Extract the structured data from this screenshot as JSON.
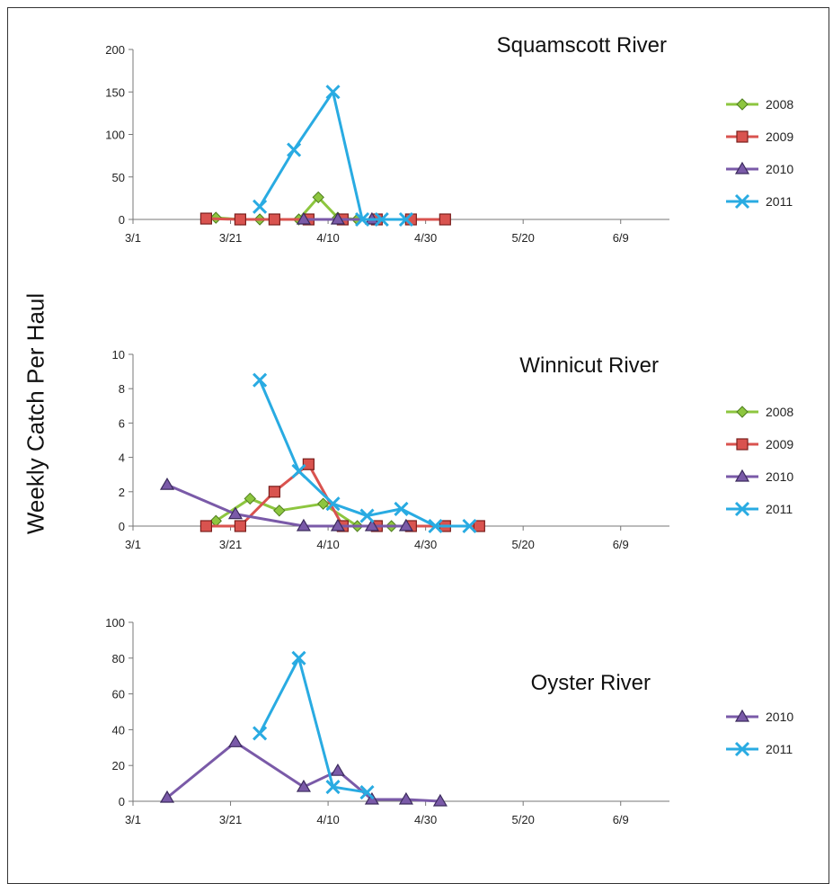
{
  "y_axis_label": "Weekly Catch Per Haul",
  "colors": {
    "2008": "#8dc63f",
    "2009": "#d9534f",
    "2010": "#7a5aa8",
    "2011": "#29abe2"
  },
  "chart_data": [
    {
      "type": "line",
      "title": "Squamscott River",
      "x_ticks": [
        "3/1",
        "3/21",
        "4/10",
        "4/30",
        "5/20",
        "6/9"
      ],
      "x_domain_days": [
        0,
        110
      ],
      "ylim": [
        0,
        200
      ],
      "y_ticks": [
        0,
        50,
        100,
        150,
        200
      ],
      "legend": "right",
      "series": [
        {
          "name": "2008",
          "marker": "diamond",
          "x": [
            "3/18",
            "3/23",
            "3/27",
            "4/4",
            "4/8",
            "4/12",
            "4/16",
            "4/20"
          ],
          "y": [
            2,
            0,
            0,
            0,
            26,
            2,
            0,
            0
          ]
        },
        {
          "name": "2009",
          "marker": "square",
          "x": [
            "3/16",
            "3/23",
            "3/30",
            "4/6",
            "4/13",
            "4/20",
            "4/27",
            "5/4"
          ],
          "y": [
            1,
            0,
            0,
            0,
            0,
            0,
            0,
            0
          ]
        },
        {
          "name": "2010",
          "marker": "triangle",
          "x": [
            "4/5",
            "4/12",
            "4/19"
          ],
          "y": [
            0,
            0,
            0
          ]
        },
        {
          "name": "2011",
          "marker": "x",
          "x": [
            "3/27",
            "4/3",
            "4/11",
            "4/17",
            "4/21",
            "4/26"
          ],
          "y": [
            15,
            82,
            150,
            0,
            0,
            0
          ]
        }
      ]
    },
    {
      "type": "line",
      "title": "Winnicut River",
      "x_ticks": [
        "3/1",
        "3/21",
        "4/10",
        "4/30",
        "5/20",
        "6/9"
      ],
      "x_domain_days": [
        0,
        110
      ],
      "ylim": [
        0,
        10
      ],
      "y_ticks": [
        0,
        2,
        4,
        6,
        8,
        10
      ],
      "legend": "right",
      "series": [
        {
          "name": "2008",
          "marker": "diamond",
          "x": [
            "3/18",
            "3/25",
            "3/31",
            "4/9",
            "4/16",
            "4/23"
          ],
          "y": [
            0.3,
            1.6,
            0.9,
            1.3,
            0,
            0
          ]
        },
        {
          "name": "2009",
          "marker": "square",
          "x": [
            "3/16",
            "3/23",
            "3/30",
            "4/6",
            "4/13",
            "4/20",
            "4/27",
            "5/4",
            "5/11"
          ],
          "y": [
            0,
            0,
            2,
            3.6,
            0,
            0,
            0,
            0,
            0
          ]
        },
        {
          "name": "2010",
          "marker": "triangle",
          "x": [
            "3/8",
            "3/22",
            "4/5",
            "4/12",
            "4/19",
            "4/26"
          ],
          "y": [
            2.4,
            0.7,
            0,
            0,
            0,
            0
          ]
        },
        {
          "name": "2011",
          "marker": "x",
          "x": [
            "3/27",
            "4/4",
            "4/11",
            "4/18",
            "4/25",
            "5/2",
            "5/9"
          ],
          "y": [
            8.5,
            3.2,
            1.3,
            0.6,
            1.0,
            0,
            0
          ]
        }
      ]
    },
    {
      "type": "line",
      "title": "Oyster River",
      "x_ticks": [
        "3/1",
        "3/21",
        "4/10",
        "4/30",
        "5/20",
        "6/9"
      ],
      "x_domain_days": [
        0,
        110
      ],
      "ylim": [
        0,
        100
      ],
      "y_ticks": [
        0,
        20,
        40,
        60,
        80,
        100
      ],
      "legend": "right",
      "series": [
        {
          "name": "2010",
          "marker": "triangle",
          "x": [
            "3/8",
            "3/22",
            "4/5",
            "4/12",
            "4/19",
            "4/26",
            "5/3"
          ],
          "y": [
            2,
            33,
            8,
            17,
            1,
            1,
            0
          ]
        },
        {
          "name": "2011",
          "marker": "x",
          "x": [
            "3/27",
            "4/4",
            "4/11",
            "4/18"
          ],
          "y": [
            38,
            80,
            8,
            5
          ]
        }
      ]
    }
  ]
}
